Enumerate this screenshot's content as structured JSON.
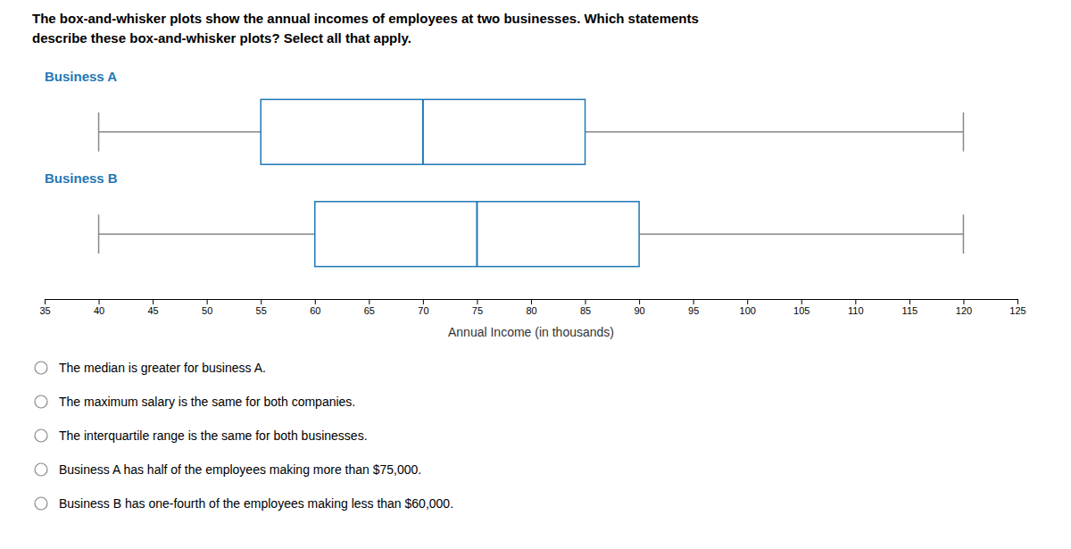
{
  "chart_data": {
    "type": "box",
    "title": [
      "The box-and-whisker plots show the annual incomes of employees at two businesses. Which statements",
      "describe these box-and-whisker plots? Select all that apply."
    ],
    "series": [
      {
        "name": "Business A",
        "min": 40,
        "q1": 55,
        "median": 70,
        "q3": 85,
        "max": 120
      },
      {
        "name": "Business B",
        "min": 40,
        "q1": 60,
        "median": 75,
        "q3": 90,
        "max": 120
      }
    ],
    "xlabel": "Annual Income (in thousands)",
    "xlim": [
      35,
      125
    ],
    "xticks": [
      35,
      40,
      45,
      50,
      55,
      60,
      65,
      70,
      75,
      80,
      85,
      90,
      95,
      100,
      105,
      110,
      115,
      120,
      125
    ],
    "annotations": [
      "The median is greater for business A.",
      "The maximum salary is the same for both companies.",
      "The interquartile range is the same for both businesses.",
      "Business A has half of the employees making more than $75,000.",
      "Business B has one-fourth of the employees making less than $60,000."
    ]
  }
}
